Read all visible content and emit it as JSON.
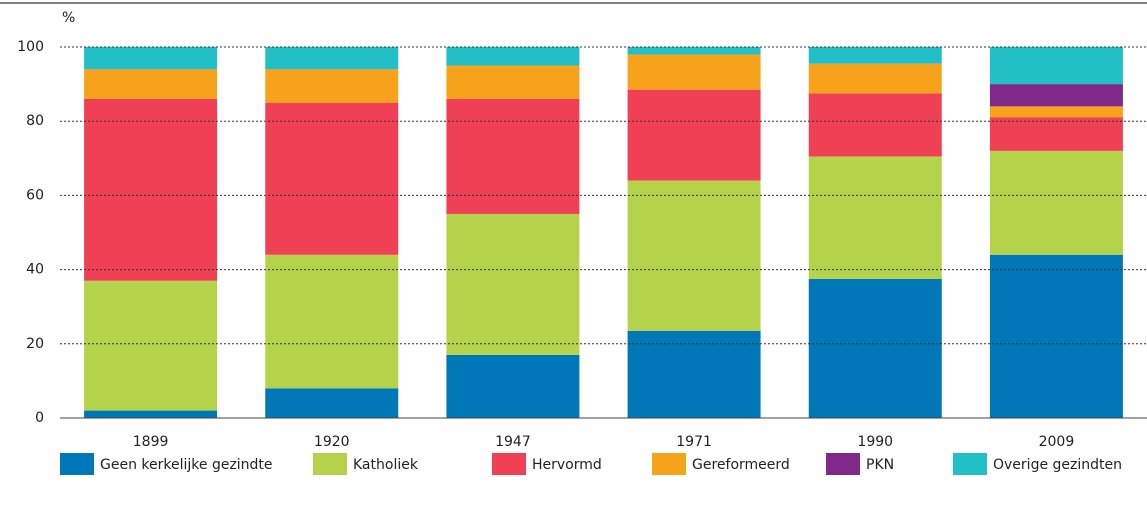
{
  "chart_data": {
    "type": "stacked_bar",
    "y_axis_label": "%",
    "categories": [
      "1899",
      "1920",
      "1947",
      "1971",
      "1990",
      "2009"
    ],
    "series": [
      {
        "name": "Geen kerkelijke gezindte",
        "color": "#0077b6",
        "values": [
          2,
          8,
          17,
          23.5,
          37.5,
          44
        ]
      },
      {
        "name": "Katholiek",
        "color": "#b5d34a",
        "values": [
          35,
          36,
          38,
          40.5,
          33,
          28
        ]
      },
      {
        "name": "Hervormd",
        "color": "#ef4056",
        "values": [
          49,
          41,
          31,
          24.5,
          17,
          9
        ]
      },
      {
        "name": "Gereformeerd",
        "color": "#f7a21b",
        "values": [
          8,
          9,
          9,
          9.5,
          8,
          3
        ]
      },
      {
        "name": "PKN",
        "color": "#7f2a8a",
        "values": [
          0,
          0,
          0,
          0,
          0,
          6
        ]
      },
      {
        "name": "Overige gezindten",
        "color": "#22bfc6",
        "values": [
          6,
          6,
          5,
          2,
          4.5,
          10
        ]
      }
    ],
    "ylim": [
      0,
      100
    ],
    "yticks": [
      0,
      20,
      40,
      60,
      80,
      100
    ],
    "grid": true
  }
}
